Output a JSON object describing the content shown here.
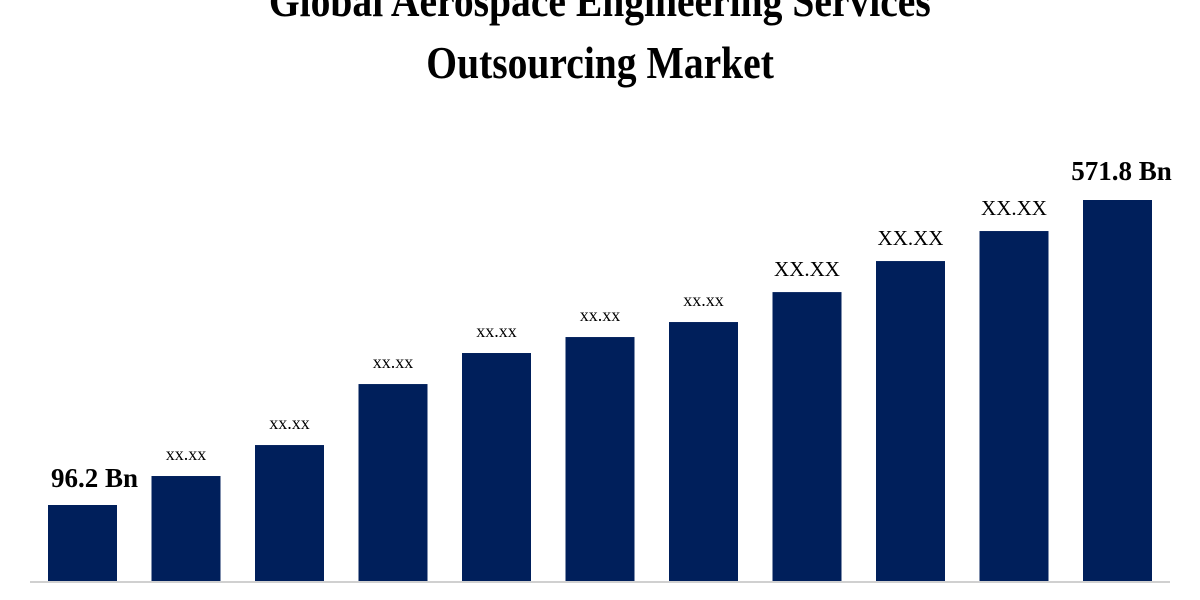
{
  "chart_data": {
    "type": "bar",
    "title": "Global Aerospace Engineering Services Outsourcing Market",
    "title_lines": [
      "Global Aerospace Engineering Services",
      "Outsourcing Market"
    ],
    "xlabel": "",
    "ylabel": "",
    "grid": false,
    "legend": "none",
    "bar_color": "#001f5b",
    "axis_color": "#d0d0d0",
    "values": [
      96.2,
      141.4,
      189.7,
      284.8,
      333.2,
      358.1,
      381.5,
      428.2,
      476.6,
      523.4,
      571.8
    ],
    "data_labels": [
      "96.2 Bn",
      "xx.xx",
      "xx.xx",
      "xx.xx",
      "xx.xx",
      "xx.xx",
      "xx.xx",
      "XX.XX",
      "XX.XX",
      "XX.XX",
      "571.8 Bn"
    ]
  }
}
